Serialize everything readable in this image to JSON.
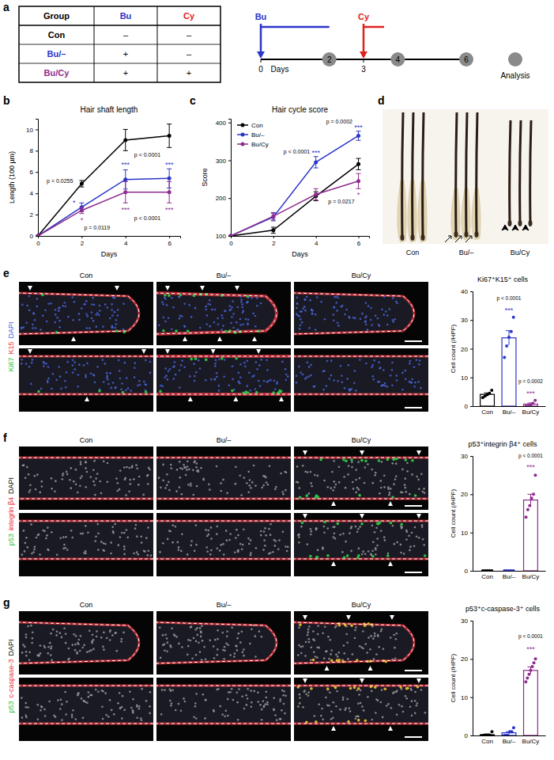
{
  "panel_labels": [
    "a",
    "b",
    "c",
    "d",
    "e",
    "f",
    "g"
  ],
  "table": {
    "header": [
      "Group",
      "Bu",
      "Cy"
    ],
    "header_colors": [
      "#000000",
      "#2b35c8",
      "#e0221e"
    ],
    "rows": [
      [
        "Con",
        "–",
        "–"
      ],
      [
        "Bu/–",
        "+",
        "–"
      ],
      [
        "Bu/Cy",
        "+",
        "+"
      ]
    ],
    "row_colors": [
      "#000000",
      "#2b35c8",
      "#8e2c8e"
    ]
  },
  "timeline": {
    "axis_label": "Days",
    "range": [
      0,
      6
    ],
    "ticks": [
      0,
      2,
      3,
      4,
      6
    ],
    "analysis_days": [
      2,
      4,
      6
    ],
    "analysis_label": "Analysis",
    "treatments": [
      {
        "name": "Bu",
        "day": 0,
        "span": [
          0,
          2
        ],
        "color": "#2b35c8"
      },
      {
        "name": "Cy",
        "day": 3,
        "span": [
          3,
          3.6
        ],
        "color": "#e0221e"
      }
    ]
  },
  "hair_images": {
    "labels": [
      "Con",
      "Bu/–",
      "Bu/Cy"
    ]
  },
  "micrographs": [
    {
      "stains": [
        {
          "text": "Ki67",
          "color": "#2fbf45"
        },
        {
          "text": "K15",
          "color": "#e8323c"
        },
        {
          "text": "DAPI",
          "color": "#3b5bdb"
        }
      ],
      "columns": [
        "Con",
        "Bu/–",
        "Bu/Cy"
      ]
    },
    {
      "stains": [
        {
          "text": "p53",
          "color": "#2fbf45"
        },
        {
          "text": "integrin β4",
          "color": "#e8323c"
        },
        {
          "text": "DAPI",
          "color": "#000000"
        }
      ],
      "columns": [
        "Con",
        "Bu/–",
        "Bu/Cy"
      ]
    },
    {
      "stains": [
        {
          "text": "p53",
          "color": "#2fbf45"
        },
        {
          "text": "c-caspase-3",
          "color": "#e8323c"
        },
        {
          "text": "DAPI",
          "color": "#000000"
        }
      ],
      "columns": [
        "Con",
        "Bu/–",
        "Bu/Cy"
      ]
    }
  ],
  "chart_data": [
    {
      "type": "line",
      "title": "Hair shaft length",
      "x_label": "Days",
      "y_label": "Length (100 µm)",
      "x": [
        0,
        2,
        4,
        6
      ],
      "xlim": [
        0,
        6.5
      ],
      "xticks": [
        0,
        2,
        4,
        6
      ],
      "ylim": [
        0,
        11
      ],
      "yticks": [
        0,
        2,
        4,
        6,
        8,
        10
      ],
      "marker": "circle",
      "series": [
        {
          "color": "#000000",
          "values": [
            0,
            4.9,
            9.0,
            9.4
          ],
          "errors": [
            0,
            0.3,
            1.0,
            1.1
          ]
        },
        {
          "color": "#2b35c8",
          "values": [
            0,
            2.7,
            5.3,
            5.4
          ],
          "errors": [
            0,
            0.4,
            0.9,
            0.9
          ]
        },
        {
          "color": "#8e2c8e",
          "values": [
            0,
            2.4,
            4.1,
            4.1
          ],
          "errors": [
            0,
            0.3,
            1.0,
            1.0
          ]
        }
      ],
      "annotations": [
        {
          "text": "p = 0.0255",
          "x": 1.0,
          "y": 5.0,
          "color": "#000000"
        },
        {
          "text": "*",
          "x": 1.65,
          "y": 2.9,
          "color": "#2b35c8"
        },
        {
          "text": "*",
          "x": 2.0,
          "y": 1.3,
          "color": "#8e2c8e"
        },
        {
          "text": "p = 0.0119",
          "x": 2.7,
          "y": 0.6,
          "color": "#000000"
        },
        {
          "text": "***",
          "x": 4,
          "y": 6.5,
          "color": "#2b35c8"
        },
        {
          "text": "***",
          "x": 6,
          "y": 6.5,
          "color": "#2b35c8"
        },
        {
          "text": "p < 0.0001",
          "x": 5,
          "y": 7.4,
          "color": "#000000"
        },
        {
          "text": "***",
          "x": 4,
          "y": 2.2,
          "color": "#8e2c8e"
        },
        {
          "text": "***",
          "x": 6,
          "y": 2.2,
          "color": "#8e2c8e"
        },
        {
          "text": "p < 0.0001",
          "x": 5,
          "y": 1.5,
          "color": "#000000"
        }
      ]
    },
    {
      "type": "line",
      "title": "Hair cycle score",
      "x_label": "Days",
      "y_label": "Score",
      "x": [
        0,
        2,
        4,
        6
      ],
      "xlim": [
        0,
        6.5
      ],
      "xticks": [
        0,
        2,
        4,
        6
      ],
      "ylim": [
        100,
        410
      ],
      "yticks": [
        100,
        200,
        300,
        400
      ],
      "marker": "circle",
      "legend": "upper left",
      "series": [
        {
          "name": "Con",
          "color": "#000000",
          "values": [
            100,
            115,
            205,
            290
          ],
          "errors": [
            0,
            8,
            12,
            15
          ]
        },
        {
          "name": "Bu/–",
          "color": "#2b35c8",
          "values": [
            100,
            150,
            295,
            365
          ],
          "errors": [
            0,
            10,
            15,
            12
          ]
        },
        {
          "name": "Bu/Cy",
          "color": "#8e2c8e",
          "values": [
            100,
            152,
            210,
            245
          ],
          "errors": [
            0,
            10,
            15,
            20
          ]
        }
      ],
      "annotations": [
        {
          "text": "p = 0.0002",
          "x": 5.1,
          "y": 398,
          "color": "#000000"
        },
        {
          "text": "***",
          "x": 6,
          "y": 381,
          "color": "#2b35c8"
        },
        {
          "text": "***",
          "x": 4,
          "y": 313,
          "color": "#2b35c8"
        },
        {
          "text": "p < 0.0001",
          "x": 3.1,
          "y": 318,
          "color": "#000000"
        },
        {
          "text": "*",
          "x": 6,
          "y": 203,
          "color": "#8e2c8e"
        },
        {
          "text": "p = 0.0217",
          "x": 5.2,
          "y": 185,
          "color": "#000000"
        }
      ]
    },
    {
      "type": "bar",
      "title": "Ki67⁺K15⁺ cells",
      "y_label": "Cell count (/HPF)",
      "categories": [
        "Con",
        "Bu/–",
        "Bu/Cy"
      ],
      "values": [
        4.1,
        23.8,
        0.7
      ],
      "errors": [
        0.5,
        2.5,
        0.4
      ],
      "points": [
        [
          3,
          3.5,
          4,
          4.5,
          5.5
        ],
        [
          17,
          21,
          24,
          26,
          31
        ],
        [
          0,
          0,
          0.5,
          1,
          2
        ]
      ],
      "colors": [
        "#000000",
        "#2b35c8",
        "#8e2c8e"
      ],
      "ylim": [
        0,
        40
      ],
      "yticks": [
        0,
        10,
        20,
        30,
        40
      ],
      "annotations": [
        {
          "text": "***",
          "category": "Bu/–",
          "y": 32.5,
          "color": "#2b35c8"
        },
        {
          "text": "p < 0.0001",
          "category": "Bu/–",
          "y": 37,
          "color": "#000000"
        },
        {
          "text": "***",
          "category": "Bu/Cy",
          "y": 3.5,
          "color": "#8e2c8e"
        },
        {
          "text": "p = 0.0002",
          "category": "Bu/Cy",
          "y": 8,
          "color": "#000000"
        }
      ]
    },
    {
      "type": "bar",
      "title": "p53⁺integrin β4⁺ cells",
      "y_label": "Cell count (/HPF)",
      "categories": [
        "Con",
        "Bu/–",
        "Bu/Cy"
      ],
      "values": [
        0,
        0,
        18.5
      ],
      "errors": [
        0,
        0,
        1.5
      ],
      "points": [
        [
          0,
          0,
          0,
          0,
          0
        ],
        [
          0,
          0,
          0,
          0,
          0
        ],
        [
          14,
          16,
          17,
          19,
          20,
          25
        ]
      ],
      "colors": [
        "#000000",
        "#2b35c8",
        "#8e2c8e"
      ],
      "ylim": [
        0,
        30
      ],
      "yticks": [
        0,
        10,
        20,
        30
      ],
      "annotations": [
        {
          "text": "***",
          "category": "Bu/Cy",
          "y": 26.5,
          "color": "#8e2c8e"
        },
        {
          "text": "p < 0.0001",
          "category": "Bu/Cy",
          "y": 29.5,
          "color": "#000000"
        }
      ]
    },
    {
      "type": "bar",
      "title": "p53⁺c-caspase-3⁺ cells",
      "y_label": "Cell count (/HPF)",
      "categories": [
        "Con",
        "Bu/–",
        "Bu/Cy"
      ],
      "values": [
        0.2,
        0.7,
        17
      ],
      "errors": [
        0.2,
        0.3,
        0.9
      ],
      "points": [
        [
          0,
          0,
          0,
          0,
          0,
          1
        ],
        [
          0,
          0,
          0,
          1,
          1,
          2
        ],
        [
          14,
          15,
          16,
          17,
          18,
          19,
          20
        ]
      ],
      "colors": [
        "#000000",
        "#2b35c8",
        "#8e2c8e"
      ],
      "ylim": [
        0,
        30
      ],
      "yticks": [
        0,
        10,
        20,
        30
      ],
      "annotations": [
        {
          "text": "***",
          "category": "Bu/Cy",
          "y": 22,
          "color": "#8e2c8e"
        },
        {
          "text": "p < 0.0001",
          "category": "Bu/Cy",
          "y": 25.5,
          "color": "#000000"
        }
      ]
    }
  ]
}
